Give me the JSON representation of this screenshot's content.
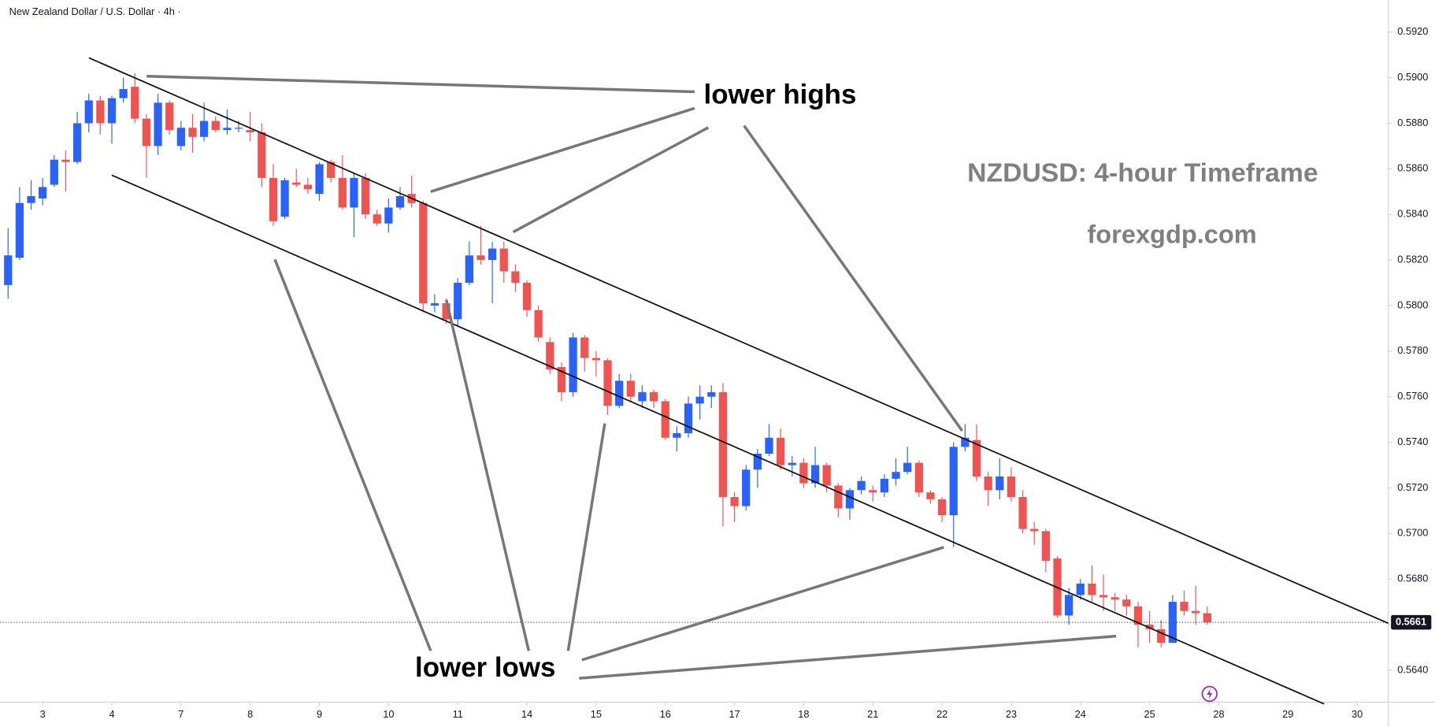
{
  "chart_data": {
    "type": "candlestick",
    "title": "New Zealand Dollar / U.S. Dollar · 4h ·",
    "annotations": [
      "lower highs",
      "lower lows",
      "NZDUSD: 4-hour Timeframe",
      "forexgdp.com"
    ],
    "up_color": "#2962ff",
    "down_color": "#f05350",
    "open": [
      0.5809,
      0.5821,
      0.5845,
      0.5847,
      0.5853,
      0.5864,
      0.5863,
      0.588,
      0.589,
      0.588,
      0.5891,
      0.5896,
      0.5882,
      0.587,
      0.5889,
      0.587,
      0.5878,
      0.5874,
      0.5881,
      0.5877,
      0.5878,
      0.5877,
      0.5876,
      0.5856,
      0.5839,
      0.5854,
      0.5853,
      0.5849,
      0.5863,
      0.5856,
      0.5843,
      0.5856,
      0.584,
      0.5836,
      0.5843,
      0.5849,
      0.5845,
      0.58,
      0.5801,
      0.5794,
      0.581,
      0.5822,
      0.582,
      0.5825,
      0.5815,
      0.581,
      0.5798,
      0.5784,
      0.5773,
      0.5762,
      0.5786,
      0.5777,
      0.5776,
      0.5756,
      0.5767,
      0.5758,
      0.5762,
      0.5758,
      0.5742,
      0.5744,
      0.5757,
      0.576,
      0.5762,
      0.5716,
      0.5712,
      0.5728,
      0.5735,
      0.5742,
      0.573,
      0.5731,
      0.5722,
      0.573,
      0.5721,
      0.5711,
      0.5719,
      0.5719,
      0.5718,
      0.5724,
      0.5727,
      0.5731,
      0.5718,
      0.5715,
      0.5708,
      0.5738,
      0.5741,
      0.5725,
      0.5719,
      0.5725,
      0.5716,
      0.5702,
      0.5701,
      0.5689,
      0.5664,
      0.5673,
      0.5678,
      0.5673,
      0.5672,
      0.5671,
      0.5668,
      0.566,
      0.5658,
      0.5652,
      0.567,
      0.5666,
      0.5665
    ],
    "high": [
      0.5834,
      0.5852,
      0.5855,
      0.5856,
      0.5866,
      0.5868,
      0.5885,
      0.5893,
      0.5892,
      0.5892,
      0.59,
      0.5902,
      0.5884,
      0.5893,
      0.589,
      0.5881,
      0.5884,
      0.5889,
      0.5883,
      0.5886,
      0.5881,
      0.5885,
      0.588,
      0.5862,
      0.5856,
      0.586,
      0.5856,
      0.5863,
      0.5864,
      0.5866,
      0.5858,
      0.5858,
      0.5842,
      0.5847,
      0.5852,
      0.5857,
      0.5846,
      0.5805,
      0.5803,
      0.5812,
      0.5828,
      0.5835,
      0.5828,
      0.5828,
      0.5818,
      0.5811,
      0.58,
      0.5786,
      0.5775,
      0.5788,
      0.5787,
      0.578,
      0.5777,
      0.577,
      0.577,
      0.5765,
      0.5763,
      0.5759,
      0.5747,
      0.576,
      0.5765,
      0.5765,
      0.5766,
      0.5718,
      0.573,
      0.5737,
      0.5748,
      0.5746,
      0.5734,
      0.5733,
      0.5738,
      0.5731,
      0.5722,
      0.572,
      0.5725,
      0.5721,
      0.5726,
      0.5733,
      0.5738,
      0.5732,
      0.5719,
      0.5716,
      0.574,
      0.5748,
      0.5748,
      0.5727,
      0.5733,
      0.5729,
      0.5719,
      0.5705,
      0.5702,
      0.569,
      0.5676,
      0.568,
      0.5686,
      0.5682,
      0.5674,
      0.5673,
      0.567,
      0.5666,
      0.5662,
      0.5673,
      0.5675,
      0.5677,
      0.5668
    ],
    "low": [
      0.5803,
      0.582,
      0.5842,
      0.5844,
      0.5852,
      0.585,
      0.5862,
      0.5876,
      0.5875,
      0.5871,
      0.5889,
      0.588,
      0.5856,
      0.5866,
      0.5875,
      0.5868,
      0.5867,
      0.5872,
      0.5876,
      0.5875,
      0.5876,
      0.5872,
      0.5852,
      0.5835,
      0.5838,
      0.5852,
      0.5849,
      0.5846,
      0.5854,
      0.5842,
      0.583,
      0.5838,
      0.5835,
      0.5832,
      0.5842,
      0.5843,
      0.5797,
      0.5797,
      0.5792,
      0.5791,
      0.5809,
      0.5818,
      0.5801,
      0.581,
      0.5806,
      0.5795,
      0.5784,
      0.577,
      0.5758,
      0.576,
      0.5771,
      0.5769,
      0.5752,
      0.5755,
      0.5758,
      0.5755,
      0.5755,
      0.5741,
      0.5736,
      0.5742,
      0.575,
      0.5755,
      0.5703,
      0.5705,
      0.571,
      0.572,
      0.5734,
      0.5728,
      0.5725,
      0.572,
      0.572,
      0.5718,
      0.5707,
      0.5706,
      0.5717,
      0.5714,
      0.5716,
      0.5721,
      0.5726,
      0.5716,
      0.5713,
      0.5705,
      0.5694,
      0.5736,
      0.5723,
      0.5712,
      0.5715,
      0.5714,
      0.57,
      0.5695,
      0.5683,
      0.5663,
      0.566,
      0.5671,
      0.567,
      0.5666,
      0.5666,
      0.5664,
      0.565,
      0.5652,
      0.565,
      0.5652,
      0.5664,
      0.566,
      0.566
    ],
    "close": [
      0.5822,
      0.5845,
      0.5848,
      0.5852,
      0.5864,
      0.5863,
      0.588,
      0.589,
      0.588,
      0.5891,
      0.5895,
      0.5882,
      0.587,
      0.5889,
      0.5877,
      0.5878,
      0.5874,
      0.5881,
      0.5877,
      0.5878,
      0.5878,
      0.5876,
      0.5856,
      0.5837,
      0.5855,
      0.5853,
      0.5851,
      0.5862,
      0.5856,
      0.5843,
      0.5856,
      0.584,
      0.5836,
      0.5843,
      0.5848,
      0.5845,
      0.5801,
      0.5801,
      0.5794,
      0.581,
      0.5822,
      0.582,
      0.5825,
      0.5815,
      0.581,
      0.5798,
      0.5786,
      0.5772,
      0.5762,
      0.5786,
      0.5777,
      0.5776,
      0.5756,
      0.5767,
      0.576,
      0.5762,
      0.5758,
      0.5742,
      0.5744,
      0.5757,
      0.576,
      0.5762,
      0.5716,
      0.5712,
      0.5728,
      0.5735,
      0.5742,
      0.573,
      0.5731,
      0.5722,
      0.573,
      0.5721,
      0.5711,
      0.5719,
      0.5723,
      0.5718,
      0.5724,
      0.5727,
      0.5731,
      0.5718,
      0.5715,
      0.5708,
      0.5738,
      0.5742,
      0.5725,
      0.5719,
      0.5725,
      0.5716,
      0.5702,
      0.5701,
      0.5688,
      0.5664,
      0.5673,
      0.5678,
      0.5673,
      0.5672,
      0.5671,
      0.5668,
      0.566,
      0.5658,
      0.5652,
      0.567,
      0.5666,
      0.5665,
      0.5661
    ],
    "last_price": {
      "value": 0.5661,
      "label": "0.5661"
    },
    "xlim": [
      -0.7,
      119.7
    ],
    "xticks": [
      {
        "value": 3,
        "label": "3"
      },
      {
        "value": 9,
        "label": "4"
      },
      {
        "value": 15,
        "label": "7"
      },
      {
        "value": 21,
        "label": "8"
      },
      {
        "value": 27,
        "label": "9"
      },
      {
        "value": 33,
        "label": "10"
      },
      {
        "value": 39,
        "label": "11"
      },
      {
        "value": 45,
        "label": "14"
      },
      {
        "value": 51,
        "label": "15"
      },
      {
        "value": 57,
        "label": "16"
      },
      {
        "value": 63,
        "label": "17"
      },
      {
        "value": 69,
        "label": "18"
      },
      {
        "value": 75,
        "label": "21"
      },
      {
        "value": 81,
        "label": "22"
      },
      {
        "value": 87,
        "label": "23"
      },
      {
        "value": 93,
        "label": "24"
      },
      {
        "value": 99,
        "label": "25"
      },
      {
        "value": 105,
        "label": "28"
      },
      {
        "value": 111,
        "label": "29"
      },
      {
        "value": 117,
        "label": "30"
      }
    ],
    "ylim": [
      0.5626,
      0.5934
    ],
    "yticks": [
      {
        "value": 0.564,
        "label": "0.5640"
      },
      {
        "value": 0.566,
        "label": "0.5660"
      },
      {
        "value": 0.568,
        "label": "0.5680"
      },
      {
        "value": 0.57,
        "label": "0.5700"
      },
      {
        "value": 0.572,
        "label": "0.5720"
      },
      {
        "value": 0.574,
        "label": "0.5740"
      },
      {
        "value": 0.576,
        "label": "0.5760"
      },
      {
        "value": 0.578,
        "label": "0.5780"
      },
      {
        "value": 0.58,
        "label": "0.5800"
      },
      {
        "value": 0.582,
        "label": "0.5820"
      },
      {
        "value": 0.584,
        "label": "0.5840"
      },
      {
        "value": 0.586,
        "label": "0.5860"
      },
      {
        "value": 0.588,
        "label": "0.5880"
      },
      {
        "value": 0.59,
        "label": "0.5900"
      },
      {
        "value": 0.592,
        "label": "0.5920"
      }
    ]
  }
}
